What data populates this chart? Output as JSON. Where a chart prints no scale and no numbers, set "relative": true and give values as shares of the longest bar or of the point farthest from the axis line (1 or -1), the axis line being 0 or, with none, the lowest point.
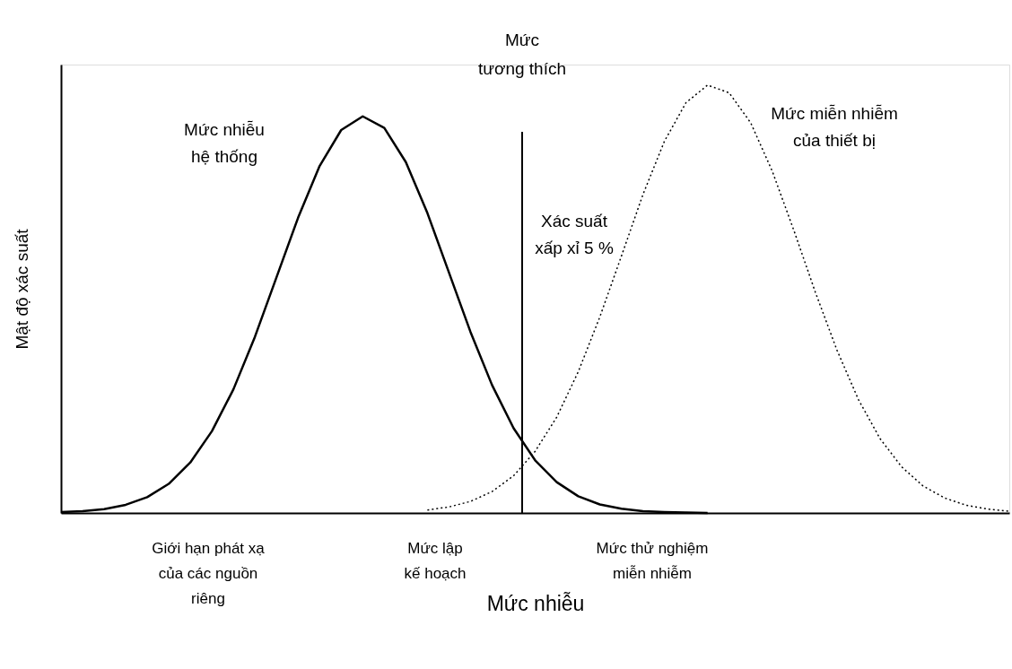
{
  "chart_data": {
    "type": "line",
    "relative": true,
    "xlabel": "Mức nhiễu",
    "ylabel": "Mật độ xác suất",
    "categories": [
      null,
      null,
      null,
      null,
      null,
      null,
      null,
      null,
      null,
      null,
      null,
      null,
      null,
      null,
      null,
      null,
      null,
      null,
      null,
      null,
      null,
      null,
      null,
      null,
      null,
      null,
      null,
      null,
      null,
      null,
      null,
      null,
      null,
      null,
      null,
      null,
      null,
      null,
      null,
      null,
      null,
      null,
      null,
      null,
      null
    ],
    "grid": false,
    "legend": false,
    "series": [
      {
        "name": "Mức nhiễu\nhệ thống",
        "color": "#000000",
        "line_style": "solid",
        "values": [
          0.002,
          0.004,
          0.009,
          0.019,
          0.037,
          0.068,
          0.118,
          0.191,
          0.289,
          0.412,
          0.551,
          0.69,
          0.811,
          0.895,
          0.927,
          0.9,
          0.82,
          0.701,
          0.562,
          0.423,
          0.299,
          0.198,
          0.123,
          0.072,
          0.039,
          0.02,
          0.01,
          0.004,
          0.002,
          0.001,
          0,
          null,
          null,
          null,
          null,
          null,
          null,
          null,
          null,
          null,
          null,
          null,
          null,
          null,
          null
        ]
      },
      {
        "name": "Mức miễn nhiễm\ncủa thiết bị",
        "color": "#000000",
        "line_style": "dotted",
        "values": [
          null,
          null,
          null,
          null,
          null,
          null,
          null,
          null,
          null,
          null,
          null,
          null,
          null,
          null,
          null,
          null,
          null,
          0.007,
          0.014,
          0.027,
          0.05,
          0.087,
          0.144,
          0.224,
          0.33,
          0.458,
          0.6,
          0.744,
          0.869,
          0.959,
          1,
          0.982,
          0.912,
          0.799,
          0.661,
          0.516,
          0.381,
          0.265,
          0.174,
          0.108,
          0.063,
          0.035,
          0.018,
          0.009,
          0.004
        ]
      }
    ],
    "ref_lines": [
      {
        "axis": "x",
        "label": "Mức\ntương thích",
        "color": "#000000"
      }
    ],
    "annotations": [
      "Xác suất\nxấp xỉ 5 %",
      "Giới hạn phát xạ\ncủa các nguồn\nriêng",
      "Mức lập\nkế hoạch",
      "Mức thử nghiệm\nmiễn nhiễm"
    ]
  }
}
